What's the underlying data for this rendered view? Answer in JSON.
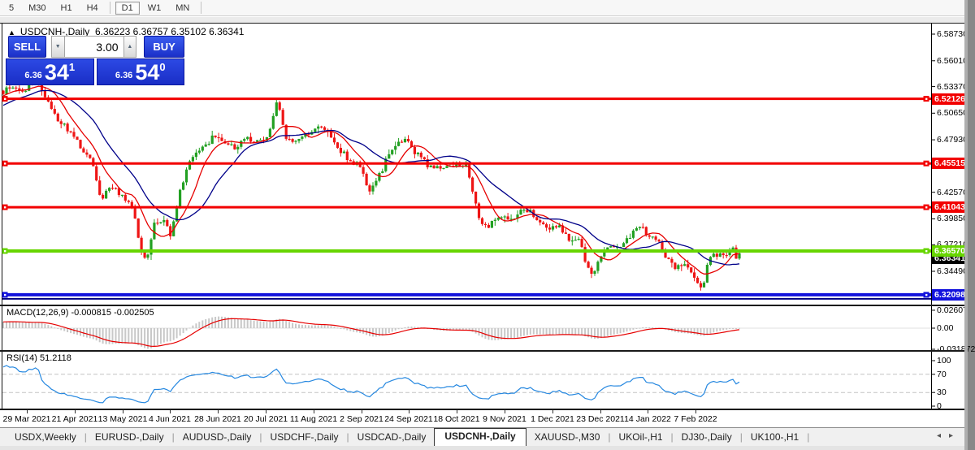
{
  "toolbar": {
    "timeframes": [
      "5",
      "M30",
      "H1",
      "H4",
      "|",
      "D1",
      "W1",
      "MN",
      "|"
    ],
    "active": "D1"
  },
  "header": {
    "collapse_icon": "▲",
    "title": "USDCNH-,Daily",
    "ohlc_text": "6.36223 6.36757 6.35102 6.36341"
  },
  "trade_panel": {
    "sell_label": "SELL",
    "buy_label": "BUY",
    "volume": "3.00",
    "down_icon": "▼",
    "up_icon": "▲",
    "sell_price_small": "6.36",
    "sell_price_big": "34",
    "sell_price_sup": "1",
    "buy_price_small": "6.36",
    "buy_price_big": "54",
    "buy_price_sup": "0"
  },
  "indicators": {
    "macd": {
      "label": "MACD(12,26,9) -0.000815 -0.002505",
      "axis": [
        {
          "text": "0.02607",
          "value": 0.02607
        },
        {
          "text": "0.00",
          "value": 0
        },
        {
          "text": "-0.031872",
          "value": -0.03187
        }
      ]
    },
    "rsi": {
      "label": "RSI(14) 51.2118",
      "axis": [
        {
          "text": "100",
          "value": 100
        },
        {
          "text": "70",
          "value": 70
        },
        {
          "text": "30",
          "value": 30
        },
        {
          "text": "0",
          "value": 0
        }
      ],
      "level_lines": [
        70,
        30
      ]
    }
  },
  "x_axis": {
    "labels": [
      "29 Mar 2021",
      "21 Apr 2021",
      "13 May 2021",
      "4 Jun 2021",
      "28 Jun 2021",
      "20 Jul 2021",
      "11 Aug 2021",
      "2 Sep 2021",
      "24 Sep 2021",
      "18 Oct 2021",
      "9 Nov 2021",
      "1 Dec 2021",
      "23 Dec 2021",
      "14 Jan 2022",
      "7 Feb 2022"
    ]
  },
  "tabs": {
    "items": [
      "USDX,Weekly",
      "EURUSD-,Daily",
      "AUDUSD-,Daily",
      "USDCHF-,Daily",
      "USDCAD-,Daily",
      "USDCNH-,Daily",
      "XAUUSD-,M30",
      "UKOil-,H1",
      "DJ30-,Daily",
      "UK100-,H1"
    ],
    "active": "USDCNH-,Daily",
    "scroll_left_icon": "◂",
    "scroll_right_icon": "▸"
  },
  "chart_data": {
    "type": "candlestick",
    "symbol": "USDCNH-",
    "timeframe": "Daily",
    "ohlc": {
      "open": 6.36223,
      "high": 6.36757,
      "low": 6.35102,
      "close": 6.36341
    },
    "y_axis_ticks": [
      "6.58730",
      "6.56010",
      "6.53370",
      "6.50650",
      "6.47930",
      "6.42570",
      "6.39850",
      "6.37210",
      "6.34490"
    ],
    "horizontal_levels": [
      {
        "price": 6.52126,
        "label": "6.52126",
        "color": "#f20000",
        "width": 3
      },
      {
        "price": 6.45515,
        "label": "6.45515",
        "color": "#f20000",
        "width": 3
      },
      {
        "price": 6.41043,
        "label": "6.41043",
        "color": "#f20000",
        "width": 3
      },
      {
        "price": 6.3657,
        "label": "6.36570",
        "color": "#67d500",
        "width": 4
      },
      {
        "price": 6.32098,
        "label": "6.32098",
        "color": "#1212dd",
        "width": 4
      },
      {
        "price": 6.3168,
        "label": "",
        "color": "#000080",
        "width": 2
      }
    ],
    "current_price": {
      "value": 6.36341,
      "label": "6.36341",
      "color": "#000000"
    },
    "axis_top_price": 6.5873,
    "candle_count": 230,
    "prelude": {
      "count": 32,
      "from": 6.478,
      "to": 6.53
    },
    "price_path": [
      [
        4,
        6.527
      ],
      [
        14,
        6.535
      ],
      [
        28,
        6.526
      ],
      [
        45,
        6.543
      ],
      [
        58,
        6.519
      ],
      [
        70,
        6.502
      ],
      [
        85,
        6.488
      ],
      [
        100,
        6.472
      ],
      [
        113,
        6.458
      ],
      [
        124,
        6.415
      ],
      [
        136,
        6.432
      ],
      [
        150,
        6.421
      ],
      [
        163,
        6.412
      ],
      [
        172,
        6.369
      ],
      [
        180,
        6.357
      ],
      [
        190,
        6.392
      ],
      [
        200,
        6.397
      ],
      [
        210,
        6.383
      ],
      [
        222,
        6.43
      ],
      [
        235,
        6.458
      ],
      [
        250,
        6.47
      ],
      [
        262,
        6.483
      ],
      [
        275,
        6.478
      ],
      [
        290,
        6.47
      ],
      [
        302,
        6.48
      ],
      [
        315,
        6.478
      ],
      [
        330,
        6.482
      ],
      [
        342,
        6.52
      ],
      [
        352,
        6.48
      ],
      [
        365,
        6.477
      ],
      [
        378,
        6.486
      ],
      [
        392,
        6.491
      ],
      [
        405,
        6.487
      ],
      [
        418,
        6.47
      ],
      [
        432,
        6.457
      ],
      [
        445,
        6.452
      ],
      [
        455,
        6.425
      ],
      [
        468,
        6.445
      ],
      [
        482,
        6.47
      ],
      [
        497,
        6.482
      ],
      [
        512,
        6.465
      ],
      [
        528,
        6.452
      ],
      [
        545,
        6.45
      ],
      [
        560,
        6.455
      ],
      [
        575,
        6.452
      ],
      [
        583,
        6.42
      ],
      [
        590,
        6.396
      ],
      [
        600,
        6.39
      ],
      [
        612,
        6.401
      ],
      [
        625,
        6.398
      ],
      [
        638,
        6.404
      ],
      [
        650,
        6.407
      ],
      [
        662,
        6.397
      ],
      [
        675,
        6.388
      ],
      [
        688,
        6.39
      ],
      [
        700,
        6.377
      ],
      [
        712,
        6.38
      ],
      [
        722,
        6.352
      ],
      [
        730,
        6.338
      ],
      [
        740,
        6.362
      ],
      [
        752,
        6.372
      ],
      [
        762,
        6.368
      ],
      [
        775,
        6.38
      ],
      [
        788,
        6.39
      ],
      [
        800,
        6.38
      ],
      [
        812,
        6.372
      ],
      [
        822,
        6.357
      ],
      [
        832,
        6.348
      ],
      [
        845,
        6.35
      ],
      [
        855,
        6.338
      ],
      [
        865,
        6.327
      ],
      [
        872,
        6.357
      ],
      [
        880,
        6.362
      ],
      [
        888,
        6.36
      ],
      [
        895,
        6.365
      ],
      [
        902,
        6.368
      ],
      [
        906,
        6.36
      ],
      [
        910,
        6.36341
      ]
    ],
    "moving_averages": [
      {
        "name": "ma-fast",
        "period": 9,
        "color": "#e60000"
      },
      {
        "name": "ma-slow",
        "period": 21,
        "color": "#000089"
      }
    ],
    "macd_params": {
      "fast": 12,
      "slow": 26,
      "signal": 9
    },
    "rsi_period": 14,
    "colors": {
      "bull": "#22a022",
      "bear": "#ee1515",
      "macd_hist": "#c8c8c8",
      "macd_signal": "#e60000",
      "rsi": "#2688e0"
    }
  }
}
